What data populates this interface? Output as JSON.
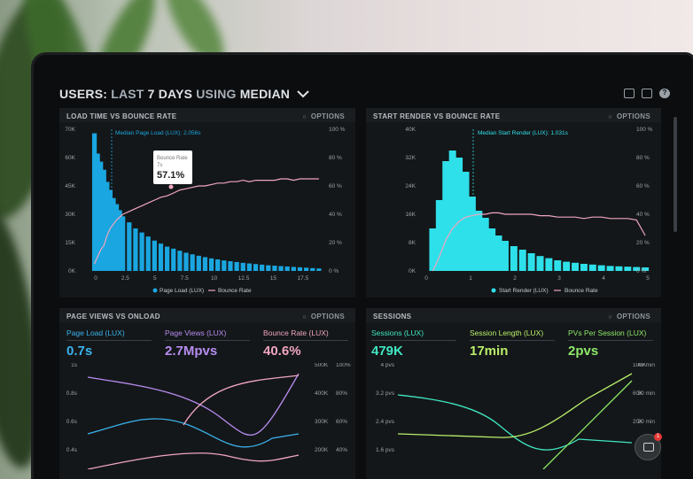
{
  "header": {
    "title_users": "USERS:",
    "title_last": "LAST",
    "title_days": "7 DAYS",
    "title_using": "USING",
    "title_median": "MEDIAN"
  },
  "panels": {
    "load_time": {
      "title": "LOAD TIME VS BOUNCE RATE",
      "options": "OPTIONS",
      "marker_label": "Median Page Load (LUX): 2.056s",
      "tooltip_label": "Bounce Rate",
      "tooltip_sub": "7s",
      "tooltip_value": "57.1%",
      "legend_bar": "Page Load (LUX)",
      "legend_line": "Bounce Rate",
      "y_left": [
        "70K",
        "60K",
        "45K",
        "30K",
        "15K",
        "0K"
      ],
      "y_right": [
        "100 %",
        "80 %",
        "60 %",
        "40 %",
        "20 %",
        "0 %"
      ],
      "x_ticks": [
        "0",
        "2.5",
        "5",
        "7.5",
        "10",
        "12.5",
        "15",
        "17.5"
      ]
    },
    "start_render": {
      "title": "START RENDER VS BOUNCE RATE",
      "options": "OPTIONS",
      "marker_label": "Median Start Render (LUX): 1.031s",
      "legend_bar": "Start Render (LUX)",
      "legend_line": "Bounce Rate",
      "y_left": [
        "40K",
        "32K",
        "24K",
        "16K",
        "8K",
        "0K"
      ],
      "y_right": [
        "100 %",
        "80 %",
        "60 %",
        "40 %",
        "20 %",
        "0 %"
      ],
      "x_ticks": [
        "0",
        "1",
        "2",
        "3",
        "4",
        "5"
      ]
    },
    "page_views": {
      "title": "PAGE VIEWS VS ONLOAD",
      "options": "OPTIONS",
      "m1_label": "Page Load (LUX)",
      "m1_value": "0.7s",
      "m2_label": "Page Views (LUX)",
      "m2_value": "2.7Mpvs",
      "m3_label": "Bounce Rate (LUX)",
      "m3_value": "40.6%",
      "y_left": [
        "1s",
        "0.8s",
        "0.6s",
        "0.4s"
      ],
      "y_mid": [
        "500K",
        "400K",
        "300K",
        "200K"
      ],
      "y_right": [
        "100%",
        "80%",
        "60%",
        "40%"
      ]
    },
    "sessions": {
      "title": "SESSIONS",
      "options": "OPTIONS",
      "m1_label": "Sessions (LUX)",
      "m1_value": "479K",
      "m2_label": "Session Length (LUX)",
      "m2_value": "17min",
      "m3_label": "PVs Per Session (LUX)",
      "m3_value": "2pvs",
      "y_left": [
        "4 pvs",
        "3.2 pvs",
        "2.4 pvs",
        "1.6 pvs"
      ],
      "y_mid": [
        "100K",
        "60K",
        "20K"
      ],
      "y_right": [
        "40 min",
        "30 min",
        "20 min",
        "10 min"
      ]
    }
  },
  "chat_badge": "1",
  "colors": {
    "bar": "#1aa6e0",
    "bar2": "#2ee0ea",
    "pink": "#f0a6c0",
    "purple": "#b78cf0",
    "green": "#93e56b",
    "lime": "#c7ef7a"
  },
  "chart_data": [
    {
      "type": "bar",
      "title": "LOAD TIME VS BOUNCE RATE",
      "x": [
        0.25,
        0.5,
        0.75,
        1,
        1.25,
        1.5,
        1.75,
        2,
        2.25,
        2.5,
        3,
        3.5,
        4,
        4.5,
        5,
        5.5,
        6,
        6.5,
        7,
        7.5,
        8,
        8.5,
        9,
        9.5,
        10,
        10.5,
        11,
        11.5,
        12,
        12.5,
        13,
        13.5,
        14,
        14.5,
        15,
        15.5,
        16,
        16.5,
        17,
        17.5,
        18
      ],
      "series": [
        {
          "name": "Page Load (LUX)",
          "values": [
            68000,
            58000,
            54000,
            50000,
            44000,
            40000,
            36000,
            33000,
            30000,
            27000,
            24000,
            21000,
            19000,
            17000,
            15000,
            13500,
            12000,
            11000,
            10000,
            9000,
            8200,
            7500,
            6800,
            6200,
            5700,
            5200,
            4800,
            4400,
            4000,
            3700,
            3400,
            3100,
            2800,
            2600,
            2400,
            2200,
            2000,
            1800,
            1600,
            1400,
            1200
          ]
        },
        {
          "name": "Bounce Rate",
          "values": [
            5,
            10,
            15,
            18,
            25,
            30,
            33,
            36,
            38,
            40,
            42,
            44,
            46,
            48,
            50,
            52,
            53,
            55,
            57.1,
            58,
            59,
            60,
            60,
            61,
            62,
            62,
            63,
            63,
            64,
            63,
            64,
            64,
            64,
            64,
            65,
            65,
            64,
            65,
            65,
            65,
            65
          ]
        }
      ],
      "ylim": [
        0,
        70000
      ]
    },
    {
      "type": "bar",
      "title": "START RENDER VS BOUNCE RATE",
      "x": [
        0.15,
        0.3,
        0.45,
        0.6,
        0.75,
        0.9,
        1.05,
        1.2,
        1.35,
        1.5,
        1.65,
        1.8,
        2,
        2.2,
        2.4,
        2.6,
        2.8,
        3,
        3.2,
        3.4,
        3.6,
        3.8,
        4,
        4.2,
        4.4,
        4.6,
        4.8,
        5
      ],
      "series": [
        {
          "name": "Start Render (LUX)",
          "values": [
            12000,
            20000,
            31000,
            34000,
            32000,
            28000,
            21000,
            17000,
            15000,
            12000,
            10000,
            8500,
            7000,
            6000,
            5000,
            4200,
            3600,
            3000,
            2600,
            2300,
            2000,
            1800,
            1600,
            1400,
            1300,
            1200,
            1100,
            1000
          ]
        },
        {
          "name": "Bounce Rate",
          "values": [
            0,
            10,
            22,
            30,
            35,
            38,
            39,
            40,
            40,
            41,
            41,
            40,
            40,
            40,
            40,
            39,
            39,
            38,
            38,
            38,
            37,
            38,
            38,
            37,
            37,
            37,
            36,
            25
          ]
        }
      ],
      "ylim": [
        0,
        40000
      ]
    }
  ]
}
